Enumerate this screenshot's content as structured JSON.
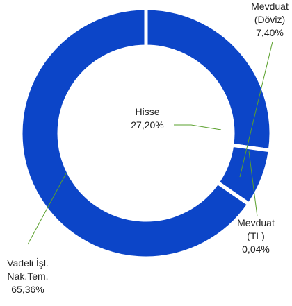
{
  "chart_data": {
    "type": "donut",
    "categories": [
      "Hisse",
      "Mevduat\n(Döviz)",
      "Mevduat\n(TL)",
      "Vadeli İşl.\nNak.Tem."
    ],
    "values": [
      27.2,
      7.4,
      0.04,
      65.36
    ],
    "value_labels": [
      "27,20%",
      "7,40%",
      "0,04%",
      "65,36%"
    ],
    "color": "#0c45c8"
  }
}
